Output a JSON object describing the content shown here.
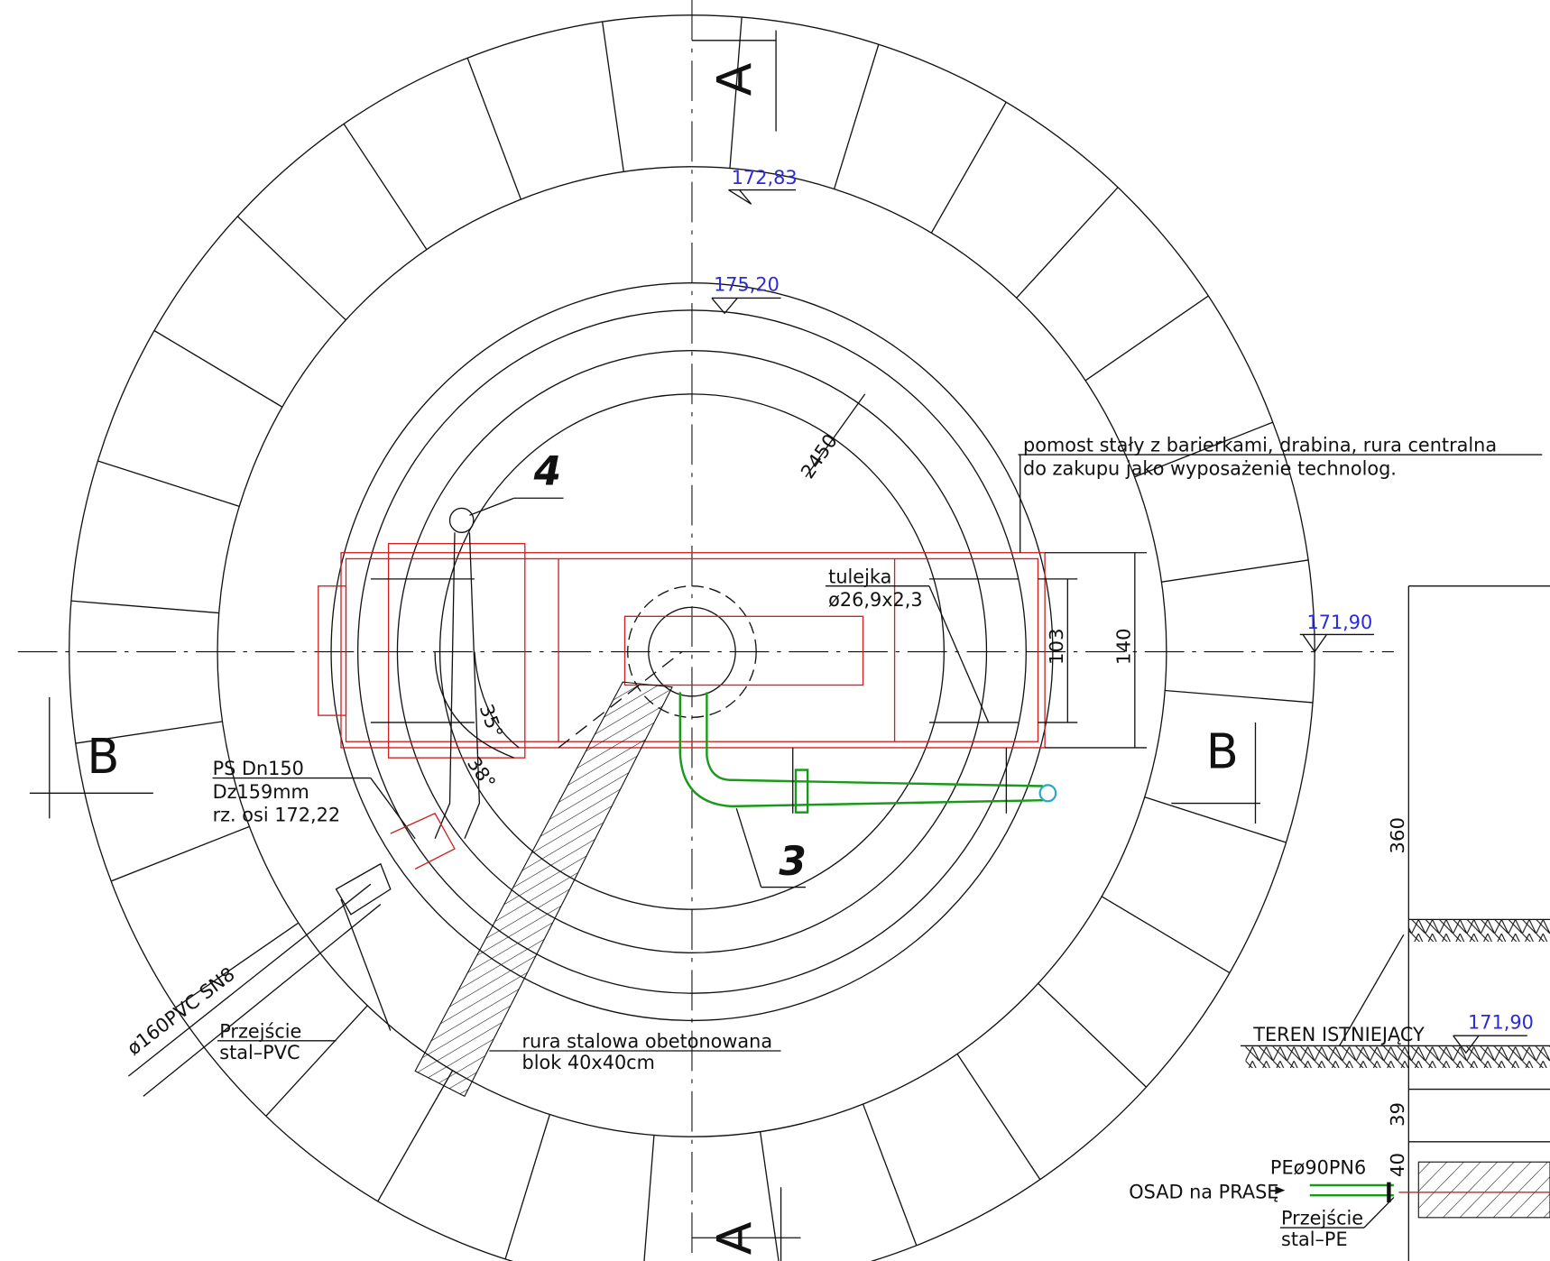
{
  "elevations": [
    "172,83",
    "175,20",
    "171,90",
    "171,90"
  ],
  "item_numbers": [
    "4",
    "3"
  ],
  "section_marks": {
    "top": "A",
    "bottom": "A",
    "left": "B",
    "right": "B"
  },
  "dimensions": {
    "radius": "2450",
    "sleeve_spacing": "103",
    "frame_width": "140",
    "angle_1": "35°",
    "angle_2": "38°",
    "height": "360",
    "depth_1": "39",
    "depth_2": "40"
  },
  "notes": {
    "platform": [
      "pomost stały z barierkami, drabina, rura centralna",
      "do zakupu jako wyposażenie technolog."
    ],
    "sleeve": [
      "tulejka",
      "ø26,9x2,3"
    ],
    "inlet_pipe": [
      "PS Dn150",
      "Dz159mm",
      "rz. osi 172,22"
    ],
    "pvc_pipe": "ø160PVC SN8",
    "transition_pvc": [
      "Przejście",
      "stal–PVC"
    ],
    "concrete_pipe": [
      "rura stalowa obetonowana",
      "blok 40x40cm"
    ],
    "terrain": "TEREN ISTNIEJĄCY",
    "pe_pipe": "PEø90PN6",
    "sludge": "OSAD na PRASĘ",
    "transition_pe": [
      "Przejście",
      "stal–PE"
    ]
  }
}
